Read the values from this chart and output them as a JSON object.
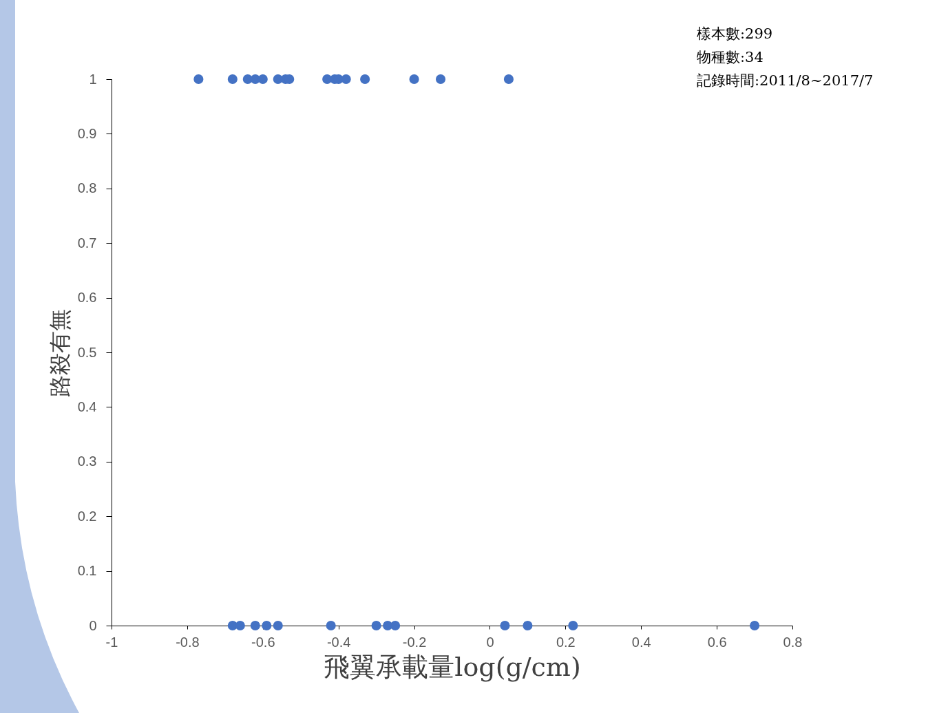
{
  "chart_data": {
    "type": "scatter",
    "xlabel": "飛翼承載量log(g/cm)",
    "ylabel": "路殺有無",
    "annotations": [
      "樣本數:299",
      "物種數:34",
      "記錄時間:2011/8~2017/7"
    ],
    "x": [
      -0.77,
      -0.68,
      -0.64,
      -0.62,
      -0.6,
      -0.56,
      -0.54,
      -0.53,
      -0.43,
      -0.41,
      -0.4,
      -0.38,
      -0.33,
      -0.2,
      -0.13,
      0.05,
      -0.68,
      -0.66,
      -0.62,
      -0.59,
      -0.56,
      -0.42,
      -0.3,
      -0.27,
      -0.25,
      0.04,
      0.1,
      0.22,
      0.7
    ],
    "values": [
      1,
      1,
      1,
      1,
      1,
      1,
      1,
      1,
      1,
      1,
      1,
      1,
      1,
      1,
      1,
      1,
      0,
      0,
      0,
      0,
      0,
      0,
      0,
      0,
      0,
      0,
      0,
      0,
      0
    ],
    "color": "#4472c4",
    "marker": "circle",
    "xlim": [
      -1,
      0.8
    ],
    "xticks": [
      -1,
      -0.8,
      -0.6,
      -0.4,
      -0.2,
      0,
      0.2,
      0.4,
      0.6,
      0.8
    ],
    "ylim": [
      0,
      1
    ],
    "yticks": [
      0,
      0.1,
      0.2,
      0.3,
      0.4,
      0.5,
      0.6,
      0.7,
      0.8,
      0.9,
      1
    ],
    "grid": false
  }
}
